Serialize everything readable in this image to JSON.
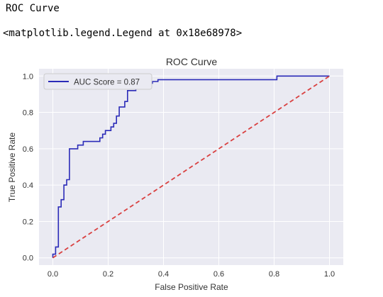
{
  "output": {
    "title_text": "ROC Curve",
    "repr_text": "<matplotlib.legend.Legend at 0x18e68978>"
  },
  "chart_data": {
    "type": "line",
    "title": "ROC Curve",
    "xlabel": "False Positive Rate",
    "ylabel": "True Positive Rate",
    "xlim": [
      -0.05,
      1.05
    ],
    "ylim": [
      -0.04,
      1.04
    ],
    "xticks": [
      0.0,
      0.2,
      0.4,
      0.6,
      0.8,
      1.0
    ],
    "xtick_labels": [
      "0.0",
      "0.2",
      "0.4",
      "0.6",
      "0.8",
      "1.0"
    ],
    "yticks": [
      0.0,
      0.2,
      0.4,
      0.6,
      0.8,
      1.0
    ],
    "ytick_labels": [
      "0.0",
      "0.2",
      "0.4",
      "0.6",
      "0.8",
      "1.0"
    ],
    "grid": true,
    "legend_position": "top-left",
    "series": [
      {
        "name": "AUC Score = 0.87",
        "style": "solid",
        "color": "#2b2bb8",
        "x": [
          0.0,
          0.0,
          0.01,
          0.01,
          0.02,
          0.02,
          0.03,
          0.03,
          0.04,
          0.04,
          0.05,
          0.05,
          0.06,
          0.06,
          0.09,
          0.09,
          0.11,
          0.11,
          0.17,
          0.17,
          0.18,
          0.18,
          0.19,
          0.19,
          0.21,
          0.21,
          0.22,
          0.22,
          0.23,
          0.23,
          0.24,
          0.24,
          0.26,
          0.26,
          0.27,
          0.27,
          0.3,
          0.3,
          0.34,
          0.34,
          0.36,
          0.36,
          0.38,
          0.38,
          0.41,
          0.41,
          0.81,
          0.81,
          1.0
        ],
        "y": [
          0.0,
          0.02,
          0.02,
          0.06,
          0.06,
          0.28,
          0.28,
          0.32,
          0.32,
          0.4,
          0.4,
          0.43,
          0.43,
          0.6,
          0.6,
          0.62,
          0.62,
          0.64,
          0.64,
          0.66,
          0.66,
          0.68,
          0.68,
          0.7,
          0.7,
          0.72,
          0.72,
          0.74,
          0.74,
          0.78,
          0.78,
          0.83,
          0.83,
          0.86,
          0.86,
          0.92,
          0.92,
          0.94,
          0.94,
          0.96,
          0.96,
          0.97,
          0.97,
          0.98,
          0.98,
          0.98,
          0.98,
          1.0,
          1.0
        ]
      },
      {
        "name": "",
        "style": "dashed",
        "color": "#d94040",
        "x": [
          0.0,
          1.0
        ],
        "y": [
          0.0,
          1.0
        ]
      }
    ]
  },
  "colors": {
    "plot_background": "#eaeaf2",
    "grid": "#ffffff",
    "text": "#333333"
  }
}
